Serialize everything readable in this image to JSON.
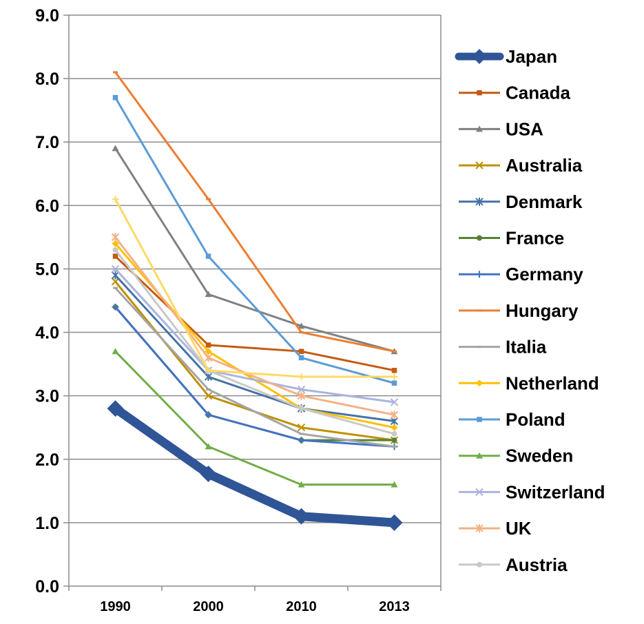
{
  "chart_data": {
    "type": "line",
    "title": "",
    "xlabel": "",
    "ylabel": "",
    "categories": [
      "1990",
      "2000",
      "2010",
      "2013"
    ],
    "ylim": [
      0,
      9
    ],
    "y_ticks": [
      "0.0",
      "1.0",
      "2.0",
      "3.0",
      "4.0",
      "5.0",
      "6.0",
      "7.0",
      "8.0",
      "9.0"
    ],
    "grid": "horizontal",
    "legend_position": "right",
    "series": [
      {
        "name": "Japan",
        "color": "#2F5597",
        "marker": "diamond",
        "values": [
          2.8,
          1.77,
          1.1,
          1.0
        ]
      },
      {
        "name": "Canada",
        "color": "#C55A11",
        "marker": "square",
        "values": [
          5.2,
          3.8,
          3.7,
          3.4
        ]
      },
      {
        "name": "USA",
        "color": "#808080",
        "marker": "triangle",
        "values": [
          6.9,
          4.6,
          4.1,
          3.7
        ]
      },
      {
        "name": "Australia",
        "color": "#BF9000",
        "marker": "x",
        "values": [
          4.8,
          3.0,
          2.5,
          2.3
        ]
      },
      {
        "name": "Denmark",
        "color": "#4472A8",
        "marker": "star",
        "values": [
          4.9,
          3.3,
          2.8,
          2.6
        ]
      },
      {
        "name": "France",
        "color": "#548235",
        "marker": "circle",
        "values": [
          4.4,
          2.7,
          2.3,
          2.3
        ]
      },
      {
        "name": "Germany",
        "color": "#4472C4",
        "marker": "plus",
        "values": [
          4.4,
          2.7,
          2.3,
          2.2
        ]
      },
      {
        "name": "Hungary",
        "color": "#ED7D31",
        "marker": "dash",
        "values": [
          8.1,
          6.1,
          4.0,
          3.7
        ]
      },
      {
        "name": "Italia",
        "color": "#A5A5A5",
        "marker": "dash",
        "values": [
          4.7,
          3.1,
          2.4,
          2.2
        ]
      },
      {
        "name": "Netherland",
        "color": "#FFC000",
        "marker": "diamond",
        "values": [
          5.4,
          3.7,
          2.8,
          2.5
        ]
      },
      {
        "name": "Poland",
        "color": "#5B9BD5",
        "marker": "square",
        "values": [
          7.7,
          5.2,
          3.6,
          3.2
        ]
      },
      {
        "name": "Sweden",
        "color": "#70AD47",
        "marker": "triangle",
        "values": [
          3.7,
          2.2,
          1.6,
          1.6
        ]
      },
      {
        "name": "Switzerland",
        "color": "#A9B4DF",
        "marker": "x",
        "values": [
          5.0,
          3.4,
          3.1,
          2.9
        ]
      },
      {
        "name": "UK",
        "color": "#F4B183",
        "marker": "star",
        "values": [
          5.5,
          3.6,
          3.0,
          2.7
        ]
      },
      {
        "name": "Austria",
        "color": "#C9C9C9",
        "marker": "circle",
        "values": [
          5.3,
          3.4,
          2.8,
          2.4
        ]
      },
      {
        "name": "",
        "color": "#FFD966",
        "marker": "plus",
        "values": [
          6.1,
          3.4,
          3.3,
          3.3
        ]
      }
    ]
  }
}
